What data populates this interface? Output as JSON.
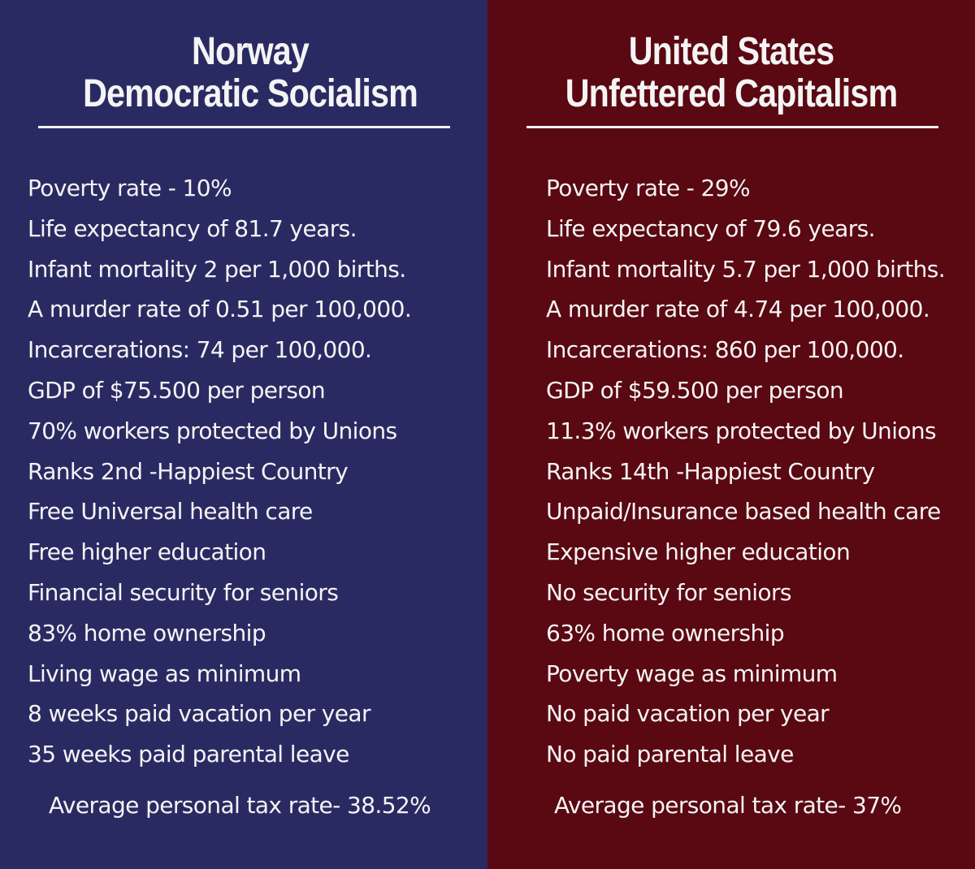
{
  "colors": {
    "left_bg": "#2a2a63",
    "right_bg": "#5a0812",
    "text": "#f4f4f4"
  },
  "left": {
    "title_line1": "Norway",
    "title_line2": "Democratic Socialism",
    "items": [
      "Poverty rate - 10%",
      "Life expectancy of 81.7 years.",
      "Infant mortality 2 per 1,000 births.",
      "A murder rate of 0.51 per 100,000.",
      "Incarcerations: 74 per 100,000.",
      "GDP of $75.500 per person",
      "70% workers protected by Unions",
      "Ranks 2nd -Happiest Country",
      "Free Universal health care",
      "Free higher education",
      "Financial security for seniors",
      "83% home ownership",
      "Living wage as minimum",
      "8 weeks paid vacation per year",
      "35 weeks paid parental leave"
    ],
    "tax": "Average personal tax rate- 38.52%"
  },
  "right": {
    "title_line1": "United States",
    "title_line2": "Unfettered Capitalism",
    "items": [
      "Poverty rate - 29%",
      "Life expectancy of 79.6 years.",
      "Infant mortality 5.7 per 1,000 births.",
      "A murder rate of 4.74 per 100,000.",
      "Incarcerations: 860 per 100,000.",
      "GDP of $59.500 per person",
      "11.3% workers protected by Unions",
      "Ranks 14th -Happiest Country",
      "Unpaid/Insurance based health care",
      "Expensive higher education",
      "No security for seniors",
      "63% home ownership",
      "Poverty wage as minimum",
      "No paid vacation per year",
      "No paid parental leave"
    ],
    "tax": "Average personal tax rate- 37%"
  }
}
